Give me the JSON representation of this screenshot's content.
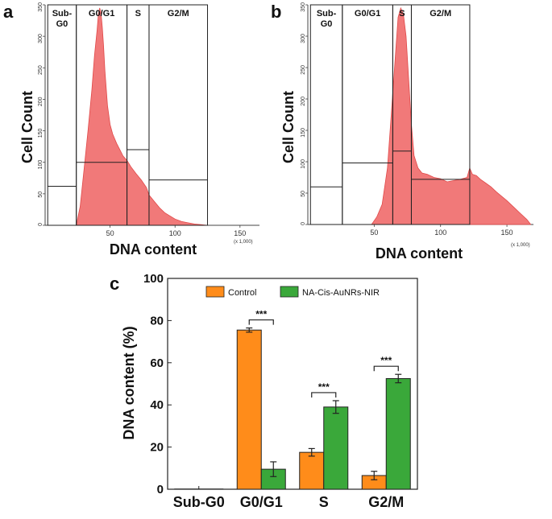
{
  "panels": {
    "a": {
      "letter": "a",
      "multiplier": "(x 1,000)"
    },
    "b": {
      "letter": "b",
      "multiplier": "(x 1,000)"
    },
    "c": {
      "letter": "c"
    }
  },
  "colors": {
    "histogram_fill": "#f06a6a",
    "histogram_edge": "#e04848",
    "control": "#ff8c1a",
    "treated": "#3aa83a"
  },
  "chart_data": [
    {
      "id": "a",
      "type": "area",
      "xlabel": "DNA content",
      "ylabel": "Cell Count",
      "xlim": [
        0,
        165
      ],
      "ylim": [
        0,
        350
      ],
      "x_ticks": [
        "50",
        "100",
        "150"
      ],
      "x_tick_values": [
        50,
        100,
        150
      ],
      "y_ticks": [
        "0",
        "50",
        "100",
        "150",
        "200",
        "250",
        "300",
        "350"
      ],
      "y_tick_values": [
        0,
        50,
        100,
        150,
        200,
        250,
        300,
        350
      ],
      "gates": [
        {
          "label": "Sub-\nG0",
          "lines": [
            "Sub-",
            "G0"
          ],
          "x0": 2,
          "x1": 24,
          "level": 62
        },
        {
          "label": "G0/G1",
          "lines": [
            "G0/G1"
          ],
          "x0": 24,
          "x1": 63,
          "level": 100
        },
        {
          "label": "S",
          "lines": [
            "S"
          ],
          "x0": 63,
          "x1": 80,
          "level": 120
        },
        {
          "label": "G2/M",
          "lines": [
            "G2/M"
          ],
          "x0": 80,
          "x1": 125,
          "level": 72
        }
      ],
      "histogram": {
        "x": [
          24,
          27,
          30,
          33,
          36,
          38,
          40,
          41,
          42,
          43,
          44,
          45,
          46,
          48,
          50,
          52,
          55,
          58,
          60,
          63,
          66,
          70,
          74,
          78,
          80,
          84,
          88,
          92,
          96,
          100,
          105,
          110,
          115,
          120,
          125
        ],
        "y": [
          0,
          30,
          90,
          150,
          215,
          270,
          310,
          335,
          345,
          338,
          315,
          285,
          245,
          190,
          160,
          145,
          130,
          118,
          110,
          103,
          93,
          82,
          72,
          60,
          48,
          38,
          28,
          20,
          15,
          10,
          6,
          4,
          2,
          1,
          0
        ]
      }
    },
    {
      "id": "b",
      "type": "area",
      "xlabel": "DNA content",
      "ylabel": "Cell Count",
      "xlim": [
        0,
        170
      ],
      "ylim": [
        0,
        350
      ],
      "x_ticks": [
        "50",
        "100",
        "150"
      ],
      "x_tick_values": [
        50,
        100,
        150
      ],
      "y_ticks": [
        "0",
        "50",
        "100",
        "150",
        "200",
        "250",
        "300",
        "350"
      ],
      "y_tick_values": [
        0,
        50,
        100,
        150,
        200,
        250,
        300,
        350
      ],
      "gates": [
        {
          "label": "Sub-\nG0",
          "lines": [
            "Sub-",
            "G0"
          ],
          "x0": 2,
          "x1": 26,
          "level": 60
        },
        {
          "label": "G0/G1",
          "lines": [
            "G0/G1"
          ],
          "x0": 26,
          "x1": 64,
          "level": 98
        },
        {
          "label": "S",
          "lines": [
            "S"
          ],
          "x0": 64,
          "x1": 78,
          "level": 117
        },
        {
          "label": "G2/M",
          "lines": [
            "G2/M"
          ],
          "x0": 78,
          "x1": 122,
          "level": 72
        }
      ],
      "histogram": {
        "x": [
          48,
          52,
          56,
          60,
          63,
          66,
          68,
          70,
          72,
          74,
          76,
          78,
          80,
          83,
          86,
          90,
          95,
          100,
          105,
          110,
          115,
          120,
          122,
          124,
          127,
          130,
          134,
          138,
          142,
          146,
          150,
          155,
          160,
          165,
          168
        ],
        "y": [
          0,
          12,
          32,
          90,
          180,
          270,
          330,
          345,
          335,
          300,
          230,
          160,
          110,
          90,
          82,
          80,
          75,
          73,
          68,
          70,
          72,
          75,
          90,
          80,
          78,
          72,
          66,
          60,
          52,
          45,
          38,
          28,
          18,
          8,
          0
        ]
      }
    },
    {
      "id": "c",
      "type": "bar",
      "title": "",
      "xlabel": "",
      "ylabel": "DNA content (%)",
      "categories": [
        "Sub-G0",
        "G0/G1",
        "S",
        "G2/M"
      ],
      "series": [
        {
          "name": "Control",
          "color_key": "control",
          "values": [
            0.1,
            75.5,
            17.5,
            6.5
          ],
          "errors": [
            0.2,
            1.0,
            1.8,
            2.0
          ]
        },
        {
          "name": "NA-Cis-AuNRs-NIR",
          "color_key": "treated",
          "values": [
            0.1,
            9.5,
            39.0,
            52.5
          ],
          "errors": [
            0.2,
            3.5,
            3.0,
            2.0
          ]
        }
      ],
      "ylim": [
        0,
        100
      ],
      "y_ticks": [
        "0",
        "20",
        "40",
        "60",
        "80",
        "100"
      ],
      "y_tick_values": [
        0,
        20,
        40,
        60,
        80,
        100
      ],
      "significance": [
        {
          "category_index": 1,
          "label": "***"
        },
        {
          "category_index": 2,
          "label": "***"
        },
        {
          "category_index": 3,
          "label": "***"
        }
      ],
      "legend": {
        "position": "top"
      }
    }
  ]
}
